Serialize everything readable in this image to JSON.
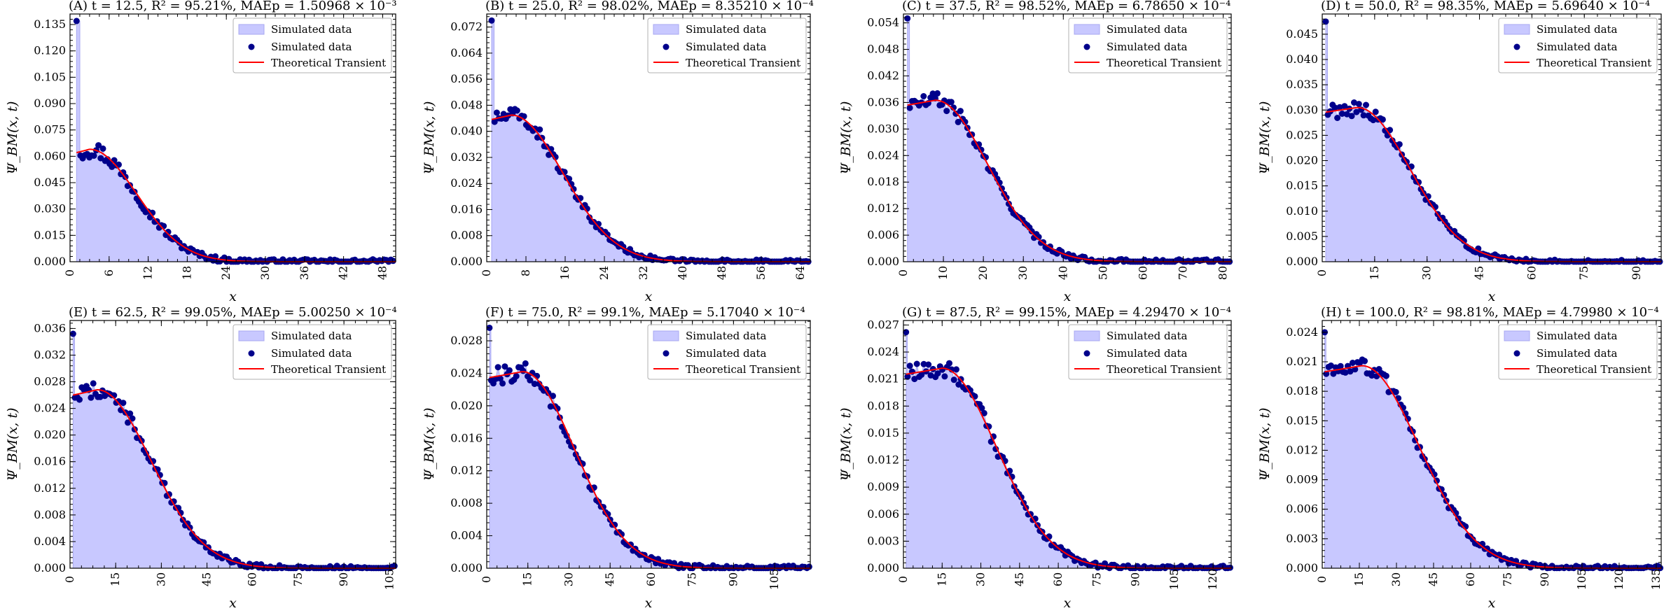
{
  "style": {
    "hist_fill": "#c8c8ff",
    "hist_edge": "#a8a8f0",
    "marker": "#00008b",
    "theory_line": "#ff0000",
    "axis": "#000000"
  },
  "legend_labels": [
    "Simulated data",
    "Simulated data",
    "Theoretical Transient"
  ],
  "chart_data": [
    {
      "panel": "A",
      "type": "area",
      "title": "(A) t = 12.5, R² = 95.21%, MAEp = 1.50968 × 10⁻³",
      "xlabel": "x",
      "ylabel": "Ψ_BM(x, t)",
      "xlim": [
        0,
        50
      ],
      "ylim": [
        0,
        0.141
      ],
      "xticks": [
        0,
        6,
        12,
        18,
        24,
        30,
        36,
        42,
        48
      ],
      "yticks": [
        0.0,
        0.015,
        0.03,
        0.045,
        0.06,
        0.075,
        0.09,
        0.105,
        0.12,
        0.135
      ],
      "ytick_decimals": 3,
      "series": [
        {
          "name": "Simulated data",
          "type": "histogram"
        },
        {
          "name": "Simulated data",
          "type": "scatter"
        },
        {
          "name": "Theoretical Transient",
          "type": "line"
        }
      ],
      "spike": {
        "x": 1,
        "y": 0.137
      },
      "peak_x": 3,
      "peak_y": 0.064,
      "sigma": 7.2,
      "x_start": 1,
      "x_end": 50,
      "points": 140,
      "noise": 0.0035,
      "legend_position": "top-right",
      "grid": false
    },
    {
      "panel": "B",
      "type": "area",
      "title": "(B) t = 25.0, R² = 98.02%, MAEp = 8.35210 × 10⁻⁴",
      "xlabel": "x",
      "ylabel": "Ψ_BM(x, t)",
      "xlim": [
        0,
        66
      ],
      "ylim": [
        0,
        0.076
      ],
      "xticks": [
        0,
        8,
        16,
        24,
        32,
        40,
        48,
        56,
        64
      ],
      "yticks": [
        0.0,
        0.008,
        0.016,
        0.024,
        0.032,
        0.04,
        0.048,
        0.056,
        0.064,
        0.072
      ],
      "ytick_decimals": 3,
      "series": [
        {
          "name": "Simulated data",
          "type": "histogram"
        },
        {
          "name": "Simulated data",
          "type": "scatter"
        },
        {
          "name": "Theoretical Transient",
          "type": "line"
        }
      ],
      "spike": {
        "x": 1,
        "y": 0.074
      },
      "peak_x": 5,
      "peak_y": 0.045,
      "sigma": 10.5,
      "x_start": 1,
      "x_end": 66,
      "points": 140,
      "noise": 0.0016,
      "legend_position": "top-right",
      "grid": false
    },
    {
      "panel": "C",
      "type": "area",
      "title": "(C) t = 37.5, R² = 98.52%, MAEp = 6.78650 × 10⁻⁴",
      "xlabel": "x",
      "ylabel": "Ψ_BM(x, t)",
      "xlim": [
        0,
        82
      ],
      "ylim": [
        0,
        0.056
      ],
      "xticks": [
        0,
        10,
        20,
        30,
        40,
        50,
        60,
        70,
        80
      ],
      "yticks": [
        0.0,
        0.006,
        0.012,
        0.018,
        0.024,
        0.03,
        0.036,
        0.042,
        0.048,
        0.054
      ],
      "ytick_decimals": 3,
      "series": [
        {
          "name": "Simulated data",
          "type": "histogram"
        },
        {
          "name": "Simulated data",
          "type": "scatter"
        },
        {
          "name": "Theoretical Transient",
          "type": "line"
        }
      ],
      "spike": {
        "x": 1,
        "y": 0.055
      },
      "peak_x": 8,
      "peak_y": 0.0365,
      "sigma": 13,
      "x_start": 1,
      "x_end": 82,
      "points": 140,
      "noise": 0.0013,
      "legend_position": "top-right",
      "grid": false
    },
    {
      "panel": "D",
      "type": "area",
      "title": "(D) t = 50.0, R² = 98.35%, MAEp = 5.69640 × 10⁻⁴",
      "xlabel": "x",
      "ylabel": "Ψ_BM(x, t)",
      "xlim": [
        0,
        97
      ],
      "ylim": [
        0,
        0.049
      ],
      "xticks": [
        0,
        15,
        30,
        45,
        60,
        75,
        90
      ],
      "yticks": [
        0.0,
        0.005,
        0.01,
        0.015,
        0.02,
        0.025,
        0.03,
        0.035,
        0.04,
        0.045
      ],
      "ytick_decimals": 3,
      "series": [
        {
          "name": "Simulated data",
          "type": "histogram"
        },
        {
          "name": "Simulated data",
          "type": "scatter"
        },
        {
          "name": "Theoretical Transient",
          "type": "line"
        }
      ],
      "spike": {
        "x": 1,
        "y": 0.0475
      },
      "peak_x": 10,
      "peak_y": 0.0305,
      "sigma": 15,
      "x_start": 1,
      "x_end": 97,
      "points": 140,
      "noise": 0.0011,
      "legend_position": "top-right",
      "grid": false
    },
    {
      "panel": "E",
      "type": "area",
      "title": "(E) t = 62.5, R² = 99.05%, MAEp = 5.00250 × 10⁻⁴",
      "xlabel": "x",
      "ylabel": "Ψ_BM(x, t)",
      "xlim": [
        0,
        107
      ],
      "ylim": [
        0,
        0.0372
      ],
      "xticks": [
        0,
        15,
        30,
        45,
        60,
        75,
        90,
        105
      ],
      "yticks": [
        0.0,
        0.004,
        0.008,
        0.012,
        0.016,
        0.02,
        0.024,
        0.028,
        0.032,
        0.036
      ],
      "ytick_decimals": 3,
      "series": [
        {
          "name": "Simulated data",
          "type": "histogram"
        },
        {
          "name": "Simulated data",
          "type": "scatter"
        },
        {
          "name": "Theoretical Transient",
          "type": "line"
        }
      ],
      "spike": {
        "x": 1,
        "y": 0.0352
      },
      "peak_x": 9,
      "peak_y": 0.0268,
      "sigma": 17.5,
      "x_start": 1,
      "x_end": 107,
      "points": 140,
      "noise": 0.0009,
      "legend_position": "top-right",
      "grid": false
    },
    {
      "panel": "F",
      "type": "area",
      "title": "(F) t = 75.0, R² = 99.1%, MAEp = 5.17040 × 10⁻⁴",
      "xlabel": "x",
      "ylabel": "Ψ_BM(x, t)",
      "xlim": [
        0,
        118
      ],
      "ylim": [
        0,
        0.0305
      ],
      "xticks": [
        0,
        15,
        30,
        45,
        60,
        75,
        90,
        105
      ],
      "yticks": [
        0.0,
        0.004,
        0.008,
        0.012,
        0.016,
        0.02,
        0.024,
        0.028
      ],
      "ytick_decimals": 3,
      "series": [
        {
          "name": "Simulated data",
          "type": "histogram"
        },
        {
          "name": "Simulated data",
          "type": "scatter"
        },
        {
          "name": "Theoretical Transient",
          "type": "line"
        }
      ],
      "spike": {
        "x": 1,
        "y": 0.0296
      },
      "peak_x": 13,
      "peak_y": 0.0242,
      "sigma": 19,
      "x_start": 1,
      "x_end": 118,
      "points": 140,
      "noise": 0.0008,
      "legend_position": "top-right",
      "grid": false
    },
    {
      "panel": "G",
      "type": "area",
      "title": "(G) t = 87.5, R² = 99.15%, MAEp = 4.29470 × 10⁻⁴",
      "xlabel": "x",
      "ylabel": "Ψ_BM(x, t)",
      "xlim": [
        0,
        127
      ],
      "ylim": [
        0,
        0.0275
      ],
      "xticks": [
        0,
        15,
        30,
        45,
        60,
        75,
        90,
        105,
        120
      ],
      "yticks": [
        0.0,
        0.003,
        0.006,
        0.009,
        0.012,
        0.015,
        0.018,
        0.021,
        0.024,
        0.027
      ],
      "ytick_decimals": 3,
      "series": [
        {
          "name": "Simulated data",
          "type": "histogram"
        },
        {
          "name": "Simulated data",
          "type": "scatter"
        },
        {
          "name": "Theoretical Transient",
          "type": "line"
        }
      ],
      "spike": {
        "x": 1,
        "y": 0.0262
      },
      "peak_x": 15,
      "peak_y": 0.0222,
      "sigma": 21,
      "x_start": 1,
      "x_end": 127,
      "points": 140,
      "noise": 0.0007,
      "legend_position": "top-right",
      "grid": false
    },
    {
      "panel": "H",
      "type": "area",
      "title": "(H) t = 100.0, R² = 98.81%, MAEp = 4.79980 × 10⁻⁴",
      "xlabel": "x",
      "ylabel": "Ψ_BM(x, t)",
      "xlim": [
        0,
        137
      ],
      "ylim": [
        0,
        0.0252
      ],
      "xticks": [
        0,
        15,
        30,
        45,
        60,
        75,
        90,
        105,
        120,
        135
      ],
      "yticks": [
        0.0,
        0.003,
        0.006,
        0.009,
        0.012,
        0.015,
        0.018,
        0.021,
        0.024
      ],
      "ytick_decimals": 3,
      "series": [
        {
          "name": "Simulated data",
          "type": "histogram"
        },
        {
          "name": "Simulated data",
          "type": "scatter"
        },
        {
          "name": "Theoretical Transient",
          "type": "line"
        }
      ],
      "spike": {
        "x": 1,
        "y": 0.024
      },
      "peak_x": 16,
      "peak_y": 0.0206,
      "sigma": 23,
      "x_start": 1,
      "x_end": 137,
      "points": 140,
      "noise": 0.0006,
      "legend_position": "top-right",
      "grid": false
    }
  ]
}
